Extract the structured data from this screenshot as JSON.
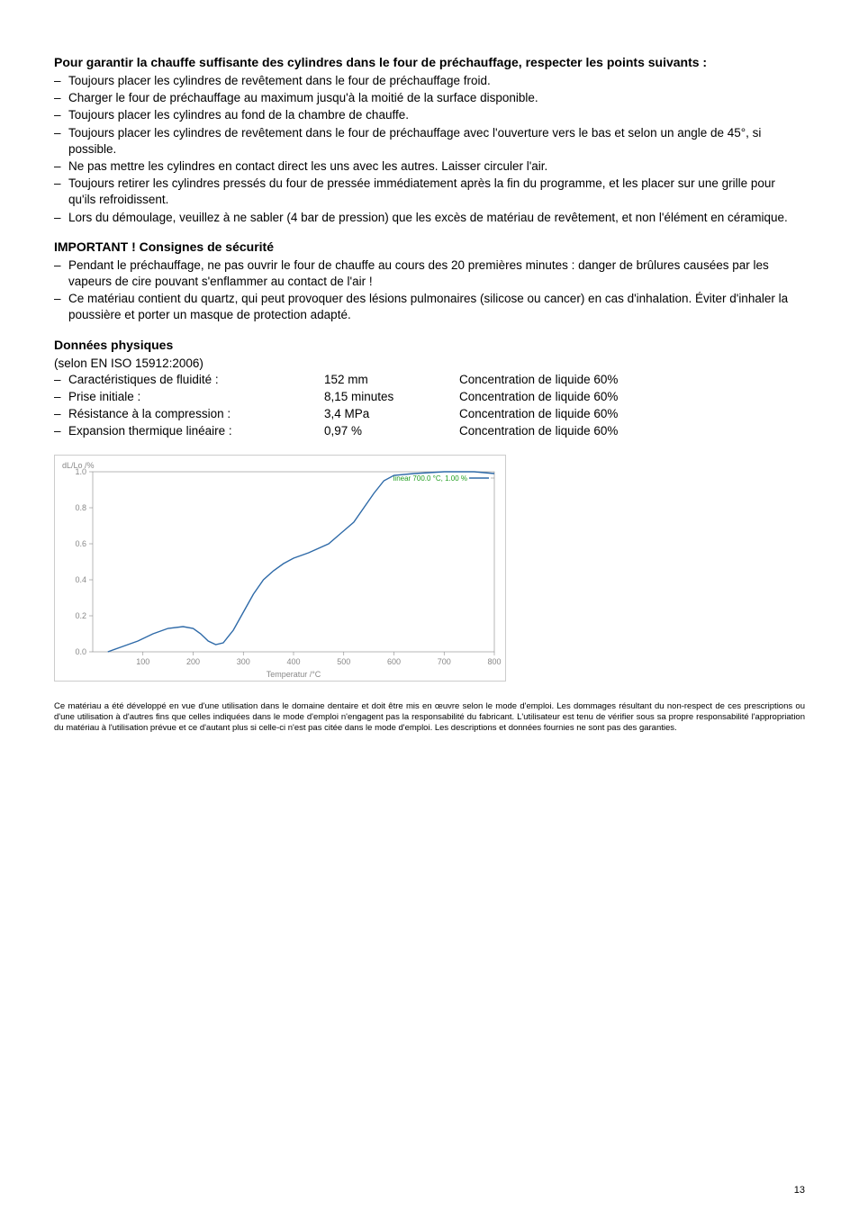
{
  "section1": {
    "heading": "Pour garantir la chauffe suffisante des cylindres dans le four de préchauffage, respecter les points suivants :",
    "items": [
      "Toujours placer les cylindres de revêtement dans le four de préchauffage froid.",
      "Charger le four de préchauffage au maximum jusqu'à la moitié de la surface disponible.",
      "Toujours placer les cylindres au fond de la chambre de chauffe.",
      "Toujours placer les cylindres de revêtement dans le four de préchauffage avec l'ouverture vers le bas et selon un angle de 45°, si possible.",
      "Ne pas mettre les cylindres en contact direct les uns avec les autres. Laisser circuler l'air.",
      "Toujours retirer les cylindres pressés du four de pressée immédiatement après la fin du programme, et les placer sur une grille pour qu'ils refroidissent.",
      "Lors du démoulage, veuillez à ne sabler (4 bar de pression) que les excès de matériau de revêtement, et non l'élément en céramique."
    ]
  },
  "section2": {
    "heading": "IMPORTANT ! Consignes de sécurité",
    "items": [
      "Pendant le préchauffage, ne pas ouvrir le four de chauffe au cours des 20 premières minutes : danger de brûlures causées par les vapeurs de cire pouvant s'enflammer au contact de l'air !",
      "Ce matériau contient du quartz, qui peut provoquer des lésions pulmonaires (silicose ou cancer) en cas d'inhalation. Éviter d'inhaler la poussière et porter un masque de protection adapté."
    ]
  },
  "section3": {
    "heading": "Données physiques",
    "subheading": "(selon EN ISO 15912:2006)",
    "rows": [
      {
        "label": "Caractéristiques de fluidité :",
        "value": "152 mm",
        "note": "Concentration de liquide 60%"
      },
      {
        "label": "Prise initiale :",
        "value": "8,15 minutes",
        "note": "Concentration de liquide 60%"
      },
      {
        "label": "Résistance à la compression :",
        "value": "3,4 MPa",
        "note": "Concentration de liquide 60%"
      },
      {
        "label": "Expansion thermique linéaire :",
        "value": "0,97 %",
        "note": "Concentration de liquide 60%"
      }
    ]
  },
  "chart": {
    "type": "line",
    "ylabel": "dL/Lo /%",
    "xlabel": "Temperatur /°C",
    "legend": "linear 700.0 °C, 1.00 %",
    "ylim": [
      0.0,
      1.0
    ],
    "xlim": [
      0,
      800
    ],
    "yticks": [
      "0.0",
      "0.2",
      "0.4",
      "0.6",
      "0.8",
      "1.0"
    ],
    "xticks": [
      "100",
      "200",
      "300",
      "400",
      "500",
      "600",
      "700",
      "800"
    ],
    "line_color": "#2e6aa8",
    "line_width": 1.4,
    "axis_color": "#888888",
    "text_color": "#888888",
    "legend_color": "#1f9d1f",
    "background_color": "#ffffff",
    "points": [
      [
        30,
        0.0
      ],
      [
        60,
        0.03
      ],
      [
        90,
        0.06
      ],
      [
        120,
        0.1
      ],
      [
        150,
        0.13
      ],
      [
        180,
        0.14
      ],
      [
        200,
        0.13
      ],
      [
        215,
        0.1
      ],
      [
        230,
        0.06
      ],
      [
        245,
        0.04
      ],
      [
        260,
        0.05
      ],
      [
        280,
        0.12
      ],
      [
        300,
        0.22
      ],
      [
        320,
        0.32
      ],
      [
        340,
        0.4
      ],
      [
        360,
        0.45
      ],
      [
        380,
        0.49
      ],
      [
        400,
        0.52
      ],
      [
        430,
        0.55
      ],
      [
        470,
        0.6
      ],
      [
        520,
        0.72
      ],
      [
        560,
        0.88
      ],
      [
        580,
        0.95
      ],
      [
        600,
        0.98
      ],
      [
        640,
        0.99
      ],
      [
        700,
        1.0
      ],
      [
        760,
        1.0
      ],
      [
        800,
        0.99
      ]
    ]
  },
  "footnote": "Ce matériau a été développé en vue d'une utilisation dans le domaine dentaire et doit être mis en œuvre selon le mode d'emploi. Les dommages résultant du non-respect de ces prescriptions ou d'une utilisation à d'autres fins que celles indiquées dans le mode d'emploi n'engagent pas la responsabilité du fabricant. L'utilisateur est tenu de vérifier sous sa propre responsabilité l'appropriation du matériau à l'utilisation prévue et ce d'autant plus si celle-ci n'est pas citée dans le mode d'emploi. Les descriptions et données fournies ne sont pas des garanties.",
  "page_number": "13"
}
